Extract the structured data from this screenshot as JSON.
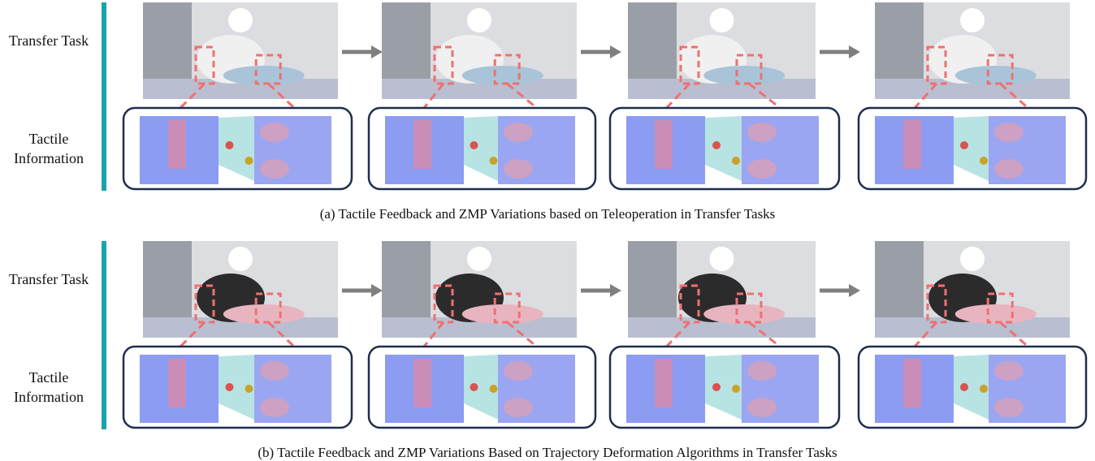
{
  "sections": [
    {
      "row_labels": [
        "Transfer Task",
        "Tactile Information"
      ],
      "caption": "(a) Tactile Feedback and ZMP Variations based on Teleoperation in Transfer Tasks"
    },
    {
      "row_labels": [
        "Transfer Task",
        "Tactile Information"
      ],
      "caption": "(b) Tactile Feedback and ZMP Variations Based on Trajectory Deformation Algorithms in Transfer Tasks"
    }
  ]
}
